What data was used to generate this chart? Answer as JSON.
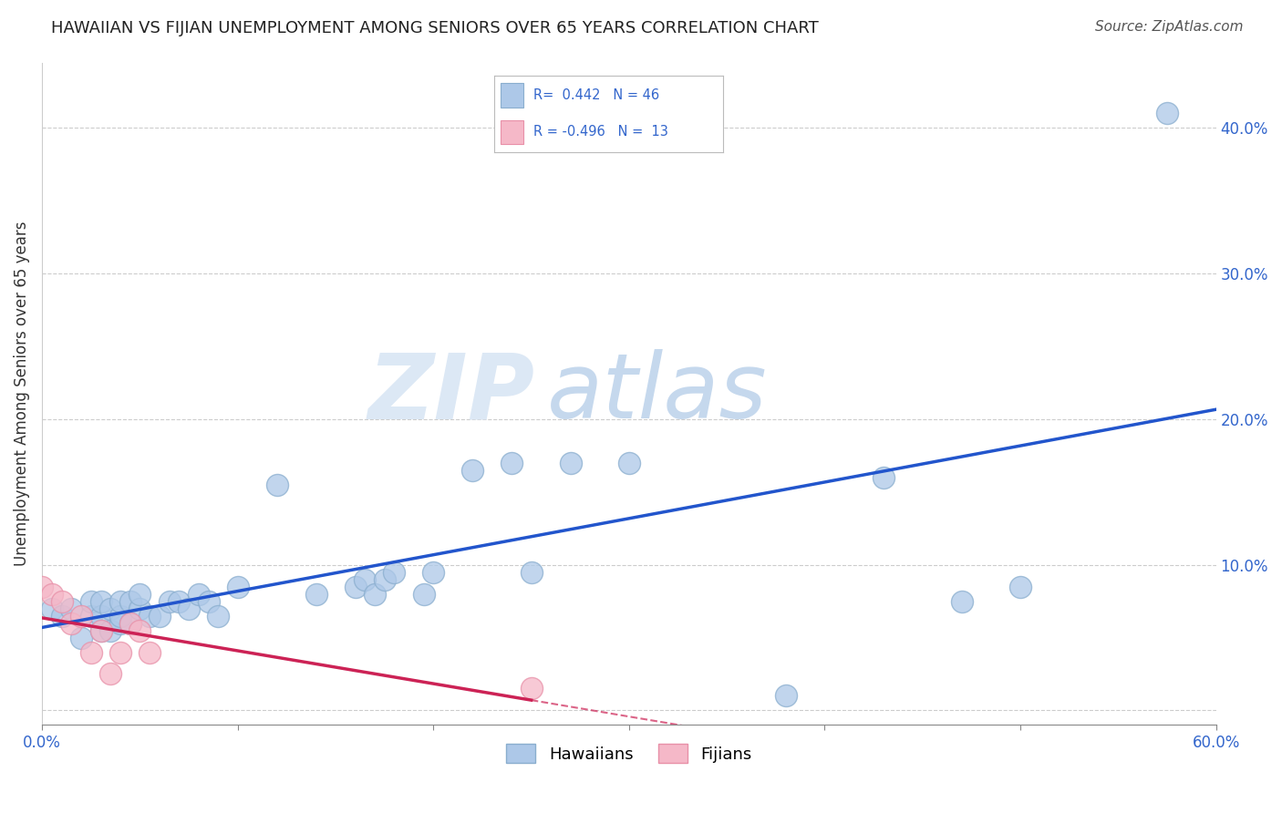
{
  "title": "HAWAIIAN VS FIJIAN UNEMPLOYMENT AMONG SENIORS OVER 65 YEARS CORRELATION CHART",
  "source": "Source: ZipAtlas.com",
  "ylabel": "Unemployment Among Seniors over 65 years",
  "xlim": [
    0.0,
    0.6
  ],
  "ylim": [
    -0.01,
    0.445
  ],
  "hawaiian_R": 0.442,
  "hawaiian_N": 46,
  "fijian_R": -0.496,
  "fijian_N": 13,
  "hawaiian_color": "#adc8e8",
  "fijian_color": "#f5b8c8",
  "hawaiian_line_color": "#2255cc",
  "fijian_line_color": "#cc2255",
  "background_color": "#ffffff",
  "watermark_zip": "ZIP",
  "watermark_atlas": "atlas",
  "hawaiian_x": [
    0.005,
    0.01,
    0.015,
    0.02,
    0.025,
    0.025,
    0.03,
    0.03,
    0.03,
    0.035,
    0.035,
    0.04,
    0.04,
    0.04,
    0.045,
    0.045,
    0.05,
    0.05,
    0.055,
    0.06,
    0.065,
    0.07,
    0.075,
    0.08,
    0.085,
    0.09,
    0.1,
    0.12,
    0.14,
    0.16,
    0.165,
    0.17,
    0.175,
    0.18,
    0.195,
    0.2,
    0.22,
    0.24,
    0.25,
    0.27,
    0.3,
    0.38,
    0.43,
    0.47,
    0.5,
    0.575
  ],
  "hawaiian_y": [
    0.07,
    0.065,
    0.07,
    0.05,
    0.065,
    0.075,
    0.055,
    0.065,
    0.075,
    0.055,
    0.07,
    0.06,
    0.065,
    0.075,
    0.06,
    0.075,
    0.07,
    0.08,
    0.065,
    0.065,
    0.075,
    0.075,
    0.07,
    0.08,
    0.075,
    0.065,
    0.085,
    0.155,
    0.08,
    0.085,
    0.09,
    0.08,
    0.09,
    0.095,
    0.08,
    0.095,
    0.165,
    0.17,
    0.095,
    0.17,
    0.17,
    0.01,
    0.16,
    0.075,
    0.085,
    0.41
  ],
  "fijian_x": [
    0.0,
    0.005,
    0.01,
    0.015,
    0.02,
    0.025,
    0.03,
    0.035,
    0.04,
    0.045,
    0.05,
    0.055,
    0.25
  ],
  "fijian_y": [
    0.085,
    0.08,
    0.075,
    0.06,
    0.065,
    0.04,
    0.055,
    0.025,
    0.04,
    0.06,
    0.055,
    0.04,
    0.015
  ],
  "ytick_positions": [
    0.0,
    0.1,
    0.2,
    0.3,
    0.4
  ],
  "ytick_labels_right": [
    "",
    "10.0%",
    "20.0%",
    "30.0%",
    "40.0%"
  ],
  "xtick_positions": [
    0.0,
    0.1,
    0.2,
    0.3,
    0.4,
    0.5,
    0.6
  ],
  "grid_color": "#cccccc",
  "title_fontsize": 13,
  "axis_fontsize": 12,
  "legend_fontsize": 13
}
